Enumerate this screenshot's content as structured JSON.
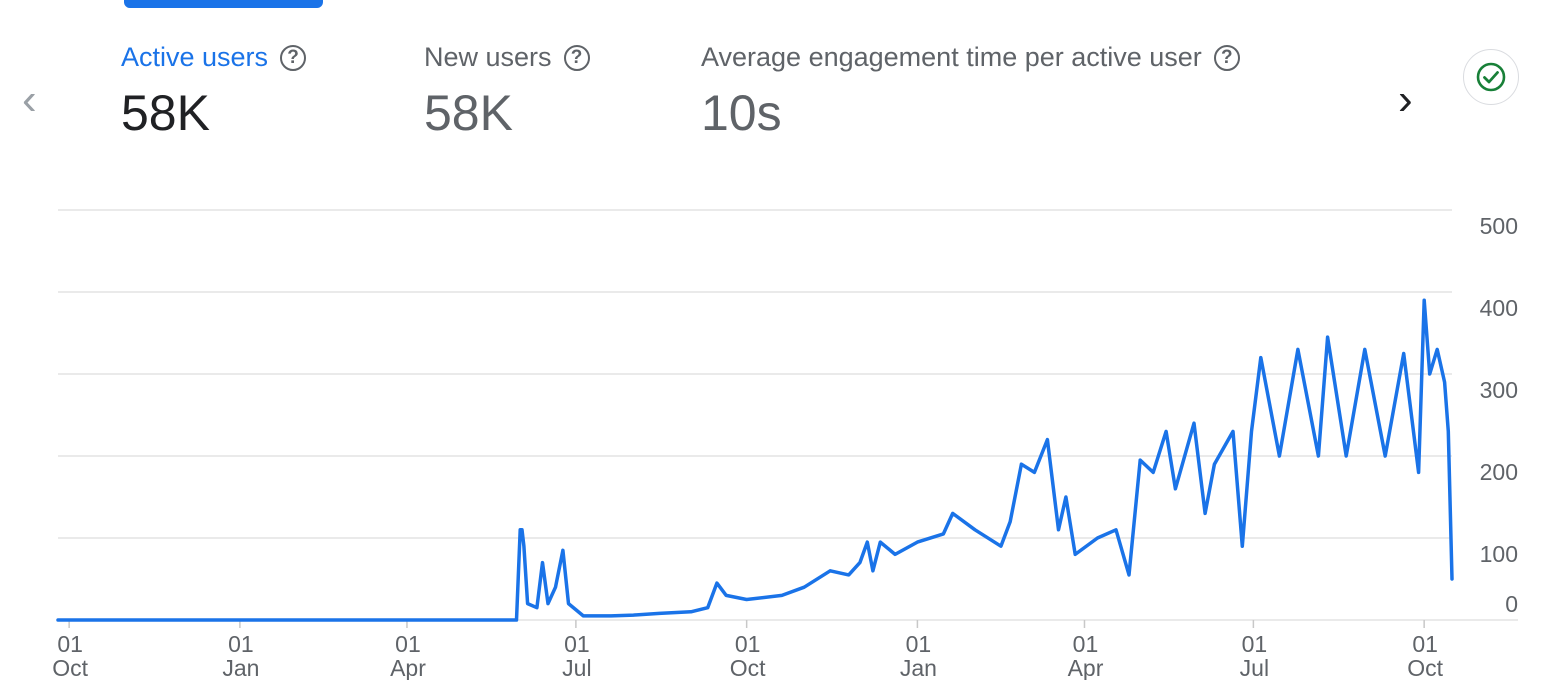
{
  "header": {
    "metrics": [
      {
        "label": "Active users",
        "value": "58K"
      },
      {
        "label": "New users",
        "value": "58K"
      },
      {
        "label": "Average engagement time per active user",
        "value": "10s"
      }
    ],
    "help_glyph": "?"
  },
  "icons": {
    "prev": "chevron-left-icon",
    "next": "chevron-right-icon",
    "status": "check-circle-icon",
    "help": "help-circle-icon"
  },
  "colors": {
    "accent": "#1a73e8",
    "status_green": "#188038",
    "grid": "#e0e0e0",
    "text_muted": "#5f6368"
  },
  "chart_data": {
    "type": "line",
    "x_start": "2021-09-25",
    "x_end": "2023-10-16",
    "ylim": [
      0,
      500
    ],
    "y_ticks": [
      0,
      100,
      200,
      300,
      400,
      500
    ],
    "x_ticks": [
      {
        "date": "2021-10-01",
        "day": "01",
        "month": "Oct"
      },
      {
        "date": "2022-01-01",
        "day": "01",
        "month": "Jan"
      },
      {
        "date": "2022-04-01",
        "day": "01",
        "month": "Apr"
      },
      {
        "date": "2022-07-01",
        "day": "01",
        "month": "Jul"
      },
      {
        "date": "2022-10-01",
        "day": "01",
        "month": "Oct"
      },
      {
        "date": "2023-01-01",
        "day": "01",
        "month": "Jan"
      },
      {
        "date": "2023-04-01",
        "day": "01",
        "month": "Apr"
      },
      {
        "date": "2023-07-01",
        "day": "01",
        "month": "Jul"
      },
      {
        "date": "2023-10-01",
        "day": "01",
        "month": "Oct"
      }
    ],
    "series": [
      {
        "color": "#1a73e8",
        "points": [
          [
            "2021-09-25",
            0
          ],
          [
            "2022-05-30",
            0
          ],
          [
            "2022-06-01",
            110
          ],
          [
            "2022-06-02",
            110
          ],
          [
            "2022-06-03",
            90
          ],
          [
            "2022-06-05",
            20
          ],
          [
            "2022-06-10",
            15
          ],
          [
            "2022-06-13",
            70
          ],
          [
            "2022-06-16",
            20
          ],
          [
            "2022-06-20",
            40
          ],
          [
            "2022-06-24",
            85
          ],
          [
            "2022-06-27",
            20
          ],
          [
            "2022-07-05",
            5
          ],
          [
            "2022-07-20",
            5
          ],
          [
            "2022-08-01",
            6
          ],
          [
            "2022-08-15",
            8
          ],
          [
            "2022-09-01",
            10
          ],
          [
            "2022-09-10",
            15
          ],
          [
            "2022-09-15",
            45
          ],
          [
            "2022-09-20",
            30
          ],
          [
            "2022-10-01",
            25
          ],
          [
            "2022-10-20",
            30
          ],
          [
            "2022-11-01",
            40
          ],
          [
            "2022-11-15",
            60
          ],
          [
            "2022-11-25",
            55
          ],
          [
            "2022-12-01",
            70
          ],
          [
            "2022-12-05",
            95
          ],
          [
            "2022-12-08",
            60
          ],
          [
            "2022-12-12",
            95
          ],
          [
            "2022-12-20",
            80
          ],
          [
            "2023-01-01",
            95
          ],
          [
            "2023-01-15",
            105
          ],
          [
            "2023-01-20",
            130
          ],
          [
            "2023-02-01",
            110
          ],
          [
            "2023-02-15",
            90
          ],
          [
            "2023-02-20",
            120
          ],
          [
            "2023-02-26",
            190
          ],
          [
            "2023-03-05",
            180
          ],
          [
            "2023-03-12",
            220
          ],
          [
            "2023-03-18",
            110
          ],
          [
            "2023-03-22",
            150
          ],
          [
            "2023-03-27",
            80
          ],
          [
            "2023-04-08",
            100
          ],
          [
            "2023-04-18",
            110
          ],
          [
            "2023-04-25",
            55
          ],
          [
            "2023-05-01",
            195
          ],
          [
            "2023-05-08",
            180
          ],
          [
            "2023-05-15",
            230
          ],
          [
            "2023-05-20",
            160
          ],
          [
            "2023-05-30",
            240
          ],
          [
            "2023-06-05",
            130
          ],
          [
            "2023-06-10",
            190
          ],
          [
            "2023-06-20",
            230
          ],
          [
            "2023-06-25",
            90
          ],
          [
            "2023-06-30",
            230
          ],
          [
            "2023-07-05",
            320
          ],
          [
            "2023-07-15",
            200
          ],
          [
            "2023-07-25",
            330
          ],
          [
            "2023-08-05",
            200
          ],
          [
            "2023-08-10",
            345
          ],
          [
            "2023-08-20",
            200
          ],
          [
            "2023-08-30",
            330
          ],
          [
            "2023-09-10",
            200
          ],
          [
            "2023-09-20",
            325
          ],
          [
            "2023-09-28",
            180
          ],
          [
            "2023-10-01",
            390
          ],
          [
            "2023-10-04",
            300
          ],
          [
            "2023-10-08",
            330
          ],
          [
            "2023-10-12",
            290
          ],
          [
            "2023-10-14",
            230
          ],
          [
            "2023-10-16",
            50
          ]
        ]
      }
    ]
  }
}
